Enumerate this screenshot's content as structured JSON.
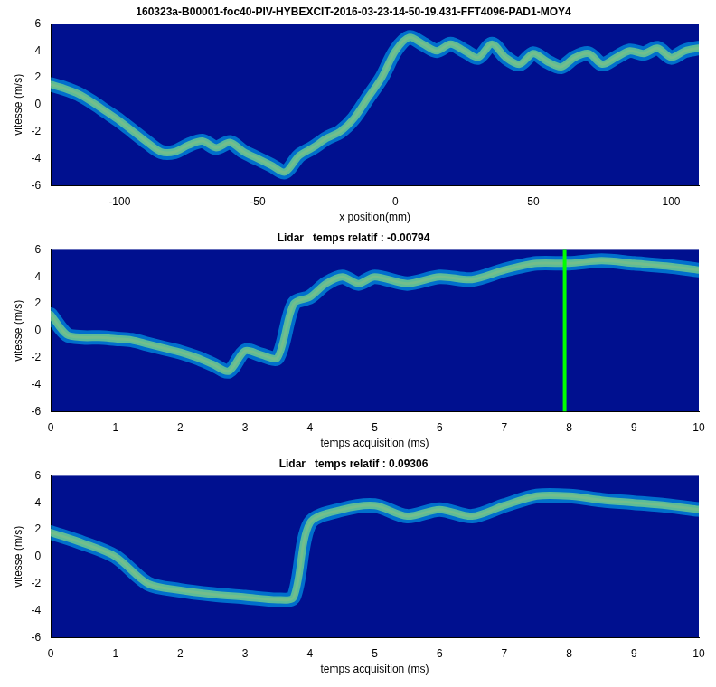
{
  "chart_data": [
    {
      "type": "line",
      "title": "160323a-B00001-foc40-PIV-HYBEXCIT-2016-03-23-14-50-19.431-FFT4096-PAD1-MOY4",
      "x_label": "x position(mm)",
      "y_label": "vitesse (m/s)",
      "x": [
        -125,
        -120,
        -115,
        -110,
        -105,
        -100,
        -95,
        -90,
        -85,
        -80,
        -75,
        -70,
        -65,
        -60,
        -55,
        -50,
        -45,
        -40,
        -35,
        -30,
        -25,
        -20,
        -15,
        -10,
        -5,
        0,
        5,
        10,
        15,
        20,
        25,
        30,
        35,
        40,
        45,
        50,
        55,
        60,
        65,
        70,
        75,
        80,
        85,
        90,
        95,
        100,
        105,
        110
      ],
      "values": [
        1.5,
        1.2,
        0.8,
        0.2,
        -0.5,
        -1.2,
        -2.0,
        -2.8,
        -3.5,
        -3.5,
        -3.0,
        -2.7,
        -3.2,
        -2.8,
        -3.5,
        -4.0,
        -4.5,
        -5.0,
        -3.8,
        -3.2,
        -2.5,
        -2.0,
        -1.0,
        0.5,
        2.0,
        4.0,
        5.0,
        4.5,
        4.0,
        4.5,
        4.0,
        3.5,
        4.5,
        3.5,
        3.0,
        3.8,
        3.2,
        2.8,
        3.5,
        3.8,
        3.0,
        3.5,
        4.0,
        3.8,
        4.2,
        3.5,
        4.0,
        4.2
      ],
      "color": "#ff2000",
      "xlim": [
        -125,
        110
      ],
      "xticks": [
        -100,
        -50,
        0,
        50,
        100
      ],
      "ylim": [
        -6,
        6
      ],
      "yticks": [
        -6,
        -4,
        -2,
        0,
        2,
        4,
        6
      ],
      "grid": false
    },
    {
      "type": "line",
      "title": "Lidar   temps relatif : -0.00794",
      "x_label": "temps acquisition (ms)",
      "y_label": "vitesse (m/s)",
      "x": [
        0,
        0.25,
        0.5,
        0.75,
        1,
        1.25,
        1.5,
        1.75,
        2,
        2.25,
        2.5,
        2.75,
        3,
        3.25,
        3.5,
        3.75,
        4,
        4.25,
        4.5,
        4.75,
        5,
        5.5,
        6,
        6.5,
        7,
        7.5,
        8,
        8.5,
        9,
        9.5,
        10
      ],
      "values": [
        1.2,
        -0.3,
        -0.5,
        -0.5,
        -0.6,
        -0.7,
        -1.0,
        -1.3,
        -1.6,
        -2.0,
        -2.5,
        -3.0,
        -1.5,
        -1.8,
        -2.0,
        2.0,
        2.5,
        3.5,
        4.0,
        3.5,
        4.0,
        3.5,
        4.0,
        3.8,
        4.5,
        5.0,
        5.0,
        5.2,
        5.0,
        4.8,
        4.5
      ],
      "color": "#ff2000",
      "vline": {
        "x": 7.93,
        "color": "#00ff00"
      },
      "xlim": [
        0,
        10
      ],
      "xticks": [
        0,
        1,
        2,
        3,
        4,
        5,
        6,
        7,
        8,
        9,
        10
      ],
      "ylim": [
        -6,
        6
      ],
      "yticks": [
        -6,
        -4,
        -2,
        0,
        2,
        4,
        6
      ],
      "grid": false
    },
    {
      "type": "line",
      "title": "Lidar   temps relatif : 0.09306",
      "x_label": "temps acquisition (ms)",
      "y_label": "vitesse (m/s)",
      "x": [
        0,
        0.5,
        1,
        1.5,
        2,
        2.5,
        3,
        3.5,
        3.75,
        4,
        4.5,
        5,
        5.5,
        6,
        6.5,
        7,
        7.5,
        8,
        8.5,
        9,
        9.5,
        10
      ],
      "values": [
        1.8,
        1.0,
        0.0,
        -2.0,
        -2.5,
        -2.8,
        -3.0,
        -3.2,
        -3.0,
        2.5,
        3.5,
        3.8,
        3.0,
        3.5,
        3.0,
        3.8,
        4.5,
        4.5,
        4.2,
        4.0,
        3.8,
        3.5
      ],
      "color": "#ff2000",
      "xlim": [
        0,
        10
      ],
      "xticks": [
        0,
        1,
        2,
        3,
        4,
        5,
        6,
        7,
        8,
        9,
        10
      ],
      "ylim": [
        -6,
        6
      ],
      "yticks": [
        -6,
        -4,
        -2,
        0,
        2,
        4,
        6
      ],
      "grid": false
    }
  ]
}
